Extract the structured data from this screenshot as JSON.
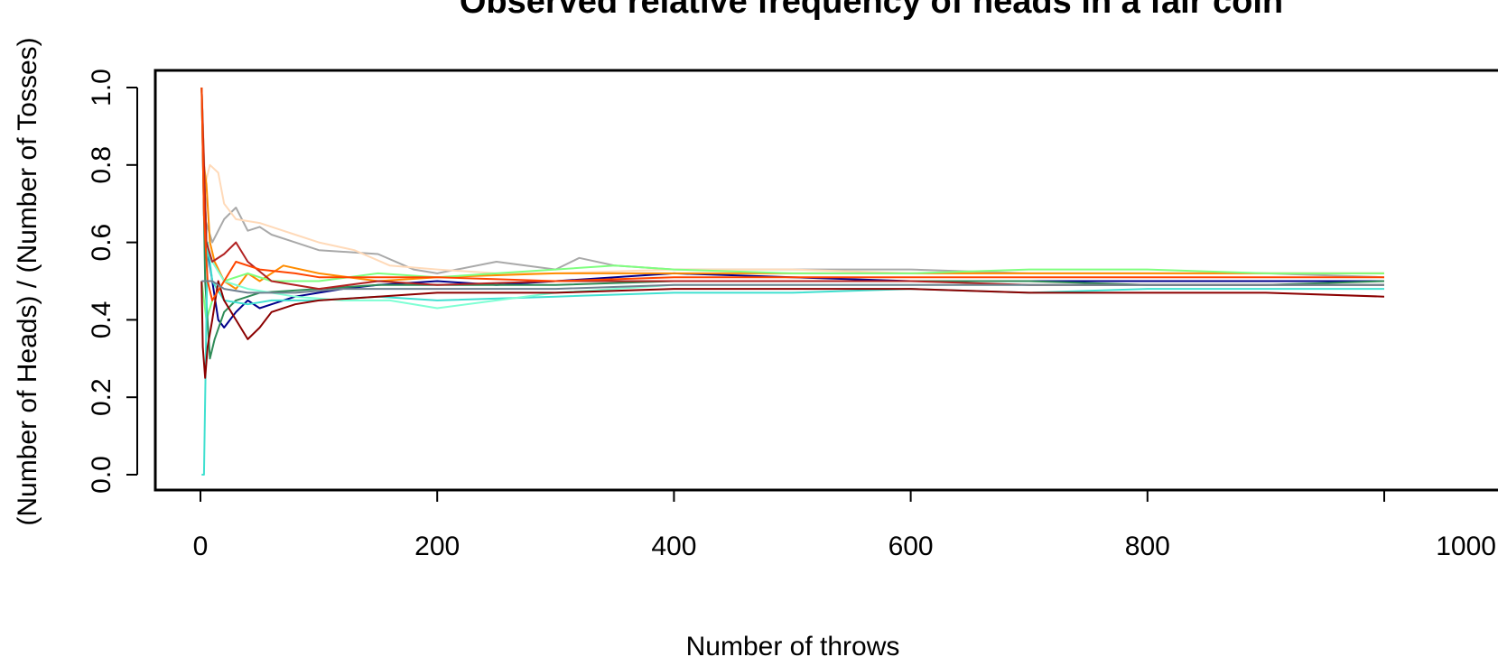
{
  "chart_data": {
    "type": "line",
    "title": "Observed relative frequency of heads in a fair coin",
    "xlabel": "Number of throws",
    "ylabel": "(Number of Heads) / (Number of Tosses)",
    "xlim": [
      0,
      1000
    ],
    "ylim": [
      0,
      1
    ],
    "x_ticks": [
      "0",
      "200",
      "400",
      "600",
      "800",
      "1000"
    ],
    "y_ticks": [
      "0.0",
      "0.2",
      "0.4",
      "0.6",
      "0.8",
      "1.0"
    ],
    "grid": false,
    "legend": "none",
    "series": [
      {
        "color": "#00008b",
        "points": [
          [
            1,
            1
          ],
          [
            5,
            0.6
          ],
          [
            10,
            0.5
          ],
          [
            15,
            0.4
          ],
          [
            20,
            0.38
          ],
          [
            30,
            0.42
          ],
          [
            40,
            0.45
          ],
          [
            50,
            0.43
          ],
          [
            60,
            0.44
          ],
          [
            80,
            0.46
          ],
          [
            100,
            0.47
          ],
          [
            120,
            0.48
          ],
          [
            150,
            0.49
          ],
          [
            200,
            0.5
          ],
          [
            250,
            0.49
          ],
          [
            300,
            0.5
          ],
          [
            350,
            0.51
          ],
          [
            400,
            0.52
          ],
          [
            500,
            0.51
          ],
          [
            600,
            0.5
          ],
          [
            700,
            0.5
          ],
          [
            800,
            0.5
          ],
          [
            900,
            0.5
          ],
          [
            1000,
            0.5
          ]
        ]
      },
      {
        "color": "#a9a9a9",
        "points": [
          [
            1,
            1
          ],
          [
            3,
            0.67
          ],
          [
            10,
            0.6
          ],
          [
            20,
            0.66
          ],
          [
            30,
            0.69
          ],
          [
            40,
            0.63
          ],
          [
            50,
            0.64
          ],
          [
            60,
            0.62
          ],
          [
            80,
            0.6
          ],
          [
            100,
            0.58
          ],
          [
            150,
            0.57
          ],
          [
            180,
            0.53
          ],
          [
            200,
            0.52
          ],
          [
            250,
            0.55
          ],
          [
            300,
            0.53
          ],
          [
            320,
            0.56
          ],
          [
            350,
            0.54
          ],
          [
            400,
            0.53
          ],
          [
            500,
            0.53
          ],
          [
            600,
            0.53
          ],
          [
            700,
            0.52
          ],
          [
            800,
            0.52
          ],
          [
            900,
            0.52
          ],
          [
            1000,
            0.51
          ]
        ]
      },
      {
        "color": "#ffdab9",
        "points": [
          [
            1,
            1
          ],
          [
            4,
            0.75
          ],
          [
            8,
            0.8
          ],
          [
            15,
            0.78
          ],
          [
            20,
            0.7
          ],
          [
            30,
            0.66
          ],
          [
            50,
            0.65
          ],
          [
            80,
            0.62
          ],
          [
            100,
            0.6
          ],
          [
            130,
            0.58
          ],
          [
            160,
            0.54
          ],
          [
            200,
            0.53
          ],
          [
            250,
            0.52
          ],
          [
            300,
            0.52
          ],
          [
            400,
            0.53
          ],
          [
            500,
            0.53
          ],
          [
            600,
            0.52
          ],
          [
            700,
            0.52
          ],
          [
            800,
            0.52
          ],
          [
            900,
            0.52
          ],
          [
            1000,
            0.52
          ]
        ]
      },
      {
        "color": "#ff8c00",
        "points": [
          [
            1,
            1
          ],
          [
            3,
            0.8
          ],
          [
            5,
            0.75
          ],
          [
            8,
            0.6
          ],
          [
            12,
            0.55
          ],
          [
            20,
            0.5
          ],
          [
            30,
            0.48
          ],
          [
            40,
            0.52
          ],
          [
            50,
            0.5
          ],
          [
            70,
            0.54
          ],
          [
            100,
            0.52
          ],
          [
            150,
            0.5
          ],
          [
            200,
            0.51
          ],
          [
            300,
            0.52
          ],
          [
            400,
            0.52
          ],
          [
            500,
            0.52
          ],
          [
            600,
            0.52
          ],
          [
            700,
            0.52
          ],
          [
            800,
            0.52
          ],
          [
            900,
            0.52
          ],
          [
            1000,
            0.52
          ]
        ]
      },
      {
        "color": "#7fff7f",
        "points": [
          [
            1,
            0.5
          ],
          [
            5,
            0.4
          ],
          [
            10,
            0.45
          ],
          [
            20,
            0.5
          ],
          [
            40,
            0.52
          ],
          [
            60,
            0.5
          ],
          [
            100,
            0.5
          ],
          [
            150,
            0.52
          ],
          [
            200,
            0.51
          ],
          [
            250,
            0.52
          ],
          [
            300,
            0.53
          ],
          [
            350,
            0.54
          ],
          [
            400,
            0.53
          ],
          [
            500,
            0.52
          ],
          [
            600,
            0.52
          ],
          [
            700,
            0.53
          ],
          [
            800,
            0.53
          ],
          [
            900,
            0.52
          ],
          [
            1000,
            0.52
          ]
        ]
      },
      {
        "color": "#2e8b57",
        "points": [
          [
            1,
            1
          ],
          [
            4,
            0.5
          ],
          [
            8,
            0.3
          ],
          [
            12,
            0.35
          ],
          [
            20,
            0.42
          ],
          [
            30,
            0.45
          ],
          [
            50,
            0.47
          ],
          [
            100,
            0.48
          ],
          [
            150,
            0.49
          ],
          [
            200,
            0.49
          ],
          [
            300,
            0.49
          ],
          [
            400,
            0.5
          ],
          [
            500,
            0.5
          ],
          [
            600,
            0.5
          ],
          [
            700,
            0.5
          ],
          [
            800,
            0.49
          ],
          [
            900,
            0.49
          ],
          [
            1000,
            0.5
          ]
        ]
      },
      {
        "color": "#40e0d0",
        "points": [
          [
            1,
            0
          ],
          [
            3,
            0
          ],
          [
            6,
            0.6
          ],
          [
            10,
            0.5
          ],
          [
            20,
            0.45
          ],
          [
            40,
            0.44
          ],
          [
            60,
            0.45
          ],
          [
            100,
            0.45
          ],
          [
            150,
            0.46
          ],
          [
            200,
            0.45
          ],
          [
            300,
            0.46
          ],
          [
            400,
            0.47
          ],
          [
            500,
            0.47
          ],
          [
            600,
            0.48
          ],
          [
            700,
            0.47
          ],
          [
            800,
            0.48
          ],
          [
            900,
            0.48
          ],
          [
            1000,
            0.48
          ]
        ]
      },
      {
        "color": "#7fffd4",
        "points": [
          [
            1,
            1
          ],
          [
            5,
            0.6
          ],
          [
            10,
            0.55
          ],
          [
            20,
            0.5
          ],
          [
            40,
            0.48
          ],
          [
            80,
            0.46
          ],
          [
            120,
            0.45
          ],
          [
            160,
            0.45
          ],
          [
            200,
            0.43
          ],
          [
            250,
            0.45
          ],
          [
            300,
            0.47
          ],
          [
            400,
            0.49
          ],
          [
            500,
            0.49
          ],
          [
            600,
            0.49
          ],
          [
            700,
            0.49
          ],
          [
            800,
            0.49
          ],
          [
            900,
            0.49
          ],
          [
            1000,
            0.49
          ]
        ]
      },
      {
        "color": "#8b0000",
        "points": [
          [
            1,
            0.5
          ],
          [
            2,
            0.33
          ],
          [
            4,
            0.25
          ],
          [
            6,
            0.33
          ],
          [
            10,
            0.4
          ],
          [
            15,
            0.5
          ],
          [
            20,
            0.45
          ],
          [
            30,
            0.4
          ],
          [
            40,
            0.35
          ],
          [
            50,
            0.38
          ],
          [
            60,
            0.42
          ],
          [
            80,
            0.44
          ],
          [
            100,
            0.45
          ],
          [
            150,
            0.46
          ],
          [
            200,
            0.47
          ],
          [
            300,
            0.47
          ],
          [
            400,
            0.48
          ],
          [
            500,
            0.48
          ],
          [
            600,
            0.48
          ],
          [
            700,
            0.47
          ],
          [
            800,
            0.47
          ],
          [
            900,
            0.47
          ],
          [
            1000,
            0.46
          ]
        ]
      },
      {
        "color": "#b22222",
        "points": [
          [
            1,
            1
          ],
          [
            5,
            0.6
          ],
          [
            10,
            0.55
          ],
          [
            20,
            0.57
          ],
          [
            30,
            0.6
          ],
          [
            40,
            0.55
          ],
          [
            60,
            0.5
          ],
          [
            100,
            0.48
          ],
          [
            150,
            0.5
          ],
          [
            200,
            0.49
          ],
          [
            300,
            0.5
          ],
          [
            400,
            0.5
          ],
          [
            500,
            0.5
          ],
          [
            600,
            0.5
          ],
          [
            700,
            0.49
          ],
          [
            800,
            0.49
          ],
          [
            900,
            0.49
          ],
          [
            1000,
            0.49
          ]
        ]
      },
      {
        "color": "#ff4500",
        "points": [
          [
            1,
            1
          ],
          [
            3,
            0.67
          ],
          [
            6,
            0.5
          ],
          [
            10,
            0.45
          ],
          [
            20,
            0.5
          ],
          [
            30,
            0.55
          ],
          [
            50,
            0.53
          ],
          [
            80,
            0.52
          ],
          [
            100,
            0.51
          ],
          [
            150,
            0.51
          ],
          [
            200,
            0.51
          ],
          [
            300,
            0.5
          ],
          [
            400,
            0.51
          ],
          [
            500,
            0.51
          ],
          [
            600,
            0.51
          ],
          [
            700,
            0.51
          ],
          [
            800,
            0.51
          ],
          [
            900,
            0.51
          ],
          [
            1000,
            0.51
          ]
        ]
      },
      {
        "color": "#708090",
        "points": [
          [
            1,
            0.5
          ],
          [
            4,
            0.5
          ],
          [
            10,
            0.5
          ],
          [
            20,
            0.48
          ],
          [
            40,
            0.47
          ],
          [
            80,
            0.47
          ],
          [
            120,
            0.48
          ],
          [
            200,
            0.48
          ],
          [
            300,
            0.48
          ],
          [
            400,
            0.49
          ],
          [
            500,
            0.49
          ],
          [
            600,
            0.49
          ],
          [
            700,
            0.49
          ],
          [
            800,
            0.49
          ],
          [
            900,
            0.49
          ],
          [
            1000,
            0.49
          ]
        ]
      }
    ]
  }
}
